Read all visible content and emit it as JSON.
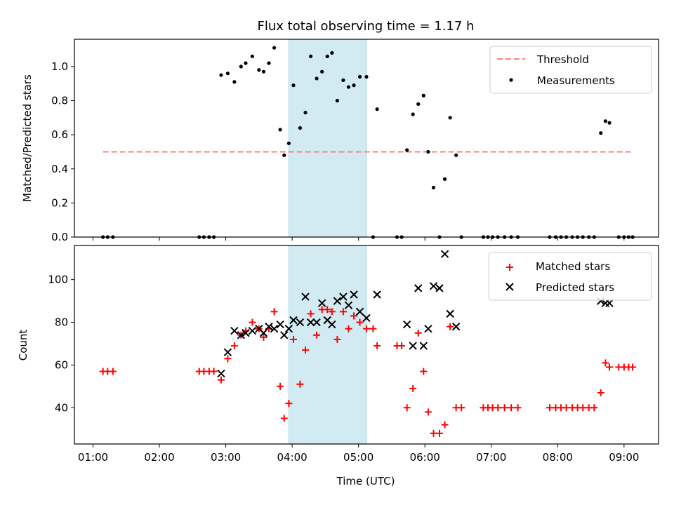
{
  "chart_data": [
    {
      "type": "scatter",
      "title": "Flux total observing time = 1.17 h",
      "xlabel": "",
      "ylabel": "Matched/Predicted stars",
      "x_tick_labels": [
        "01:00",
        "02:00",
        "03:00",
        "04:00",
        "05:00",
        "06:00",
        "07:00",
        "08:00",
        "09:00"
      ],
      "x_ticks_hours": [
        1,
        2,
        3,
        4,
        5,
        6,
        7,
        8,
        9
      ],
      "xlim_hours": [
        0.72,
        9.52
      ],
      "ylim": [
        0,
        1.16
      ],
      "y_ticks": [
        "0.0",
        "0.2",
        "0.4",
        "0.6",
        "0.8",
        "1.0"
      ],
      "y_tick_values": [
        0.0,
        0.2,
        0.4,
        0.6,
        0.8,
        1.0
      ],
      "legend_position": "top-right",
      "shaded_interval_hours": [
        3.95,
        5.12
      ],
      "shaded_color": "#add8e6",
      "series": [
        {
          "name": "Threshold",
          "style": "dashed-line",
          "color": "#ff8080",
          "x_hours": [
            1.15,
            9.13
          ],
          "y": [
            0.5,
            0.5
          ]
        },
        {
          "name": "Measurements",
          "style": "dot",
          "color": "#000000",
          "x_hours": [
            1.15,
            1.22,
            1.3,
            2.6,
            2.67,
            2.75,
            2.82,
            2.93,
            3.03,
            3.13,
            3.23,
            3.3,
            3.4,
            3.5,
            3.57,
            3.65,
            3.73,
            3.82,
            3.88,
            3.95,
            4.02,
            4.12,
            4.2,
            4.28,
            4.37,
            4.45,
            4.53,
            4.6,
            4.68,
            4.77,
            4.85,
            4.93,
            5.02,
            5.12,
            5.22,
            5.28,
            5.58,
            5.65,
            5.73,
            5.82,
            5.9,
            5.98,
            6.05,
            6.13,
            6.22,
            6.3,
            6.38,
            6.47,
            6.55,
            6.88,
            6.95,
            7.02,
            7.1,
            7.2,
            7.3,
            7.4,
            7.88,
            7.97,
            8.05,
            8.13,
            8.22,
            8.3,
            8.38,
            8.47,
            8.55,
            8.65,
            8.72,
            8.78,
            8.92,
            9.0,
            9.07,
            9.13
          ],
          "y": [
            0.0,
            0.0,
            0.0,
            0.0,
            0.0,
            0.0,
            0.0,
            0.95,
            0.96,
            0.91,
            1.0,
            1.02,
            1.06,
            0.98,
            0.97,
            1.02,
            1.11,
            0.63,
            0.48,
            0.55,
            0.89,
            0.64,
            0.73,
            1.06,
            0.93,
            0.97,
            1.06,
            1.08,
            0.8,
            0.92,
            0.88,
            0.89,
            0.94,
            0.94,
            0.0,
            0.75,
            0.0,
            0.0,
            0.51,
            0.72,
            0.78,
            0.83,
            0.5,
            0.29,
            0.0,
            0.34,
            0.7,
            0.48,
            0.0,
            0.0,
            0.0,
            0.0,
            0.0,
            0.0,
            0.0,
            0.0,
            0.0,
            0.0,
            0.0,
            0.0,
            0.0,
            0.0,
            0.0,
            0.0,
            0.0,
            0.61,
            0.68,
            0.67,
            0.0,
            0.0,
            0.0,
            0.0
          ]
        }
      ]
    },
    {
      "type": "scatter",
      "title": "",
      "xlabel": "Time (UTC)",
      "ylabel": "Count",
      "x_tick_labels": [
        "01:00",
        "02:00",
        "03:00",
        "04:00",
        "05:00",
        "06:00",
        "07:00",
        "08:00",
        "09:00"
      ],
      "x_ticks_hours": [
        1,
        2,
        3,
        4,
        5,
        6,
        7,
        8,
        9
      ],
      "xlim_hours": [
        0.72,
        9.52
      ],
      "ylim": [
        23,
        116
      ],
      "y_ticks": [
        "40",
        "60",
        "80",
        "100"
      ],
      "y_tick_values": [
        40,
        60,
        80,
        100
      ],
      "legend_position": "top-right",
      "shaded_interval_hours": [
        3.95,
        5.12
      ],
      "shaded_color": "#add8e6",
      "series": [
        {
          "name": "Matched stars",
          "style": "plus",
          "color": "#ff0000",
          "x_hours": [
            1.15,
            1.22,
            1.3,
            2.6,
            2.67,
            2.75,
            2.82,
            2.93,
            3.03,
            3.13,
            3.23,
            3.3,
            3.4,
            3.5,
            3.57,
            3.65,
            3.73,
            3.82,
            3.88,
            3.95,
            4.02,
            4.12,
            4.2,
            4.28,
            4.37,
            4.45,
            4.53,
            4.6,
            4.68,
            4.77,
            4.85,
            4.93,
            5.02,
            5.12,
            5.22,
            5.28,
            5.58,
            5.65,
            5.73,
            5.82,
            5.9,
            5.98,
            6.05,
            6.13,
            6.22,
            6.3,
            6.38,
            6.47,
            6.55,
            6.88,
            6.95,
            7.02,
            7.1,
            7.2,
            7.3,
            7.4,
            7.88,
            7.97,
            8.05,
            8.13,
            8.22,
            8.3,
            8.38,
            8.47,
            8.55,
            8.65,
            8.72,
            8.78,
            8.92,
            9.0,
            9.07,
            9.13
          ],
          "y": [
            57,
            57,
            57,
            57,
            57,
            57,
            57,
            53,
            63,
            69,
            74,
            76,
            80,
            77,
            73,
            77,
            85,
            50,
            35,
            42,
            72,
            51,
            67,
            84,
            74,
            86,
            86,
            85,
            72,
            85,
            77,
            83,
            80,
            77,
            77,
            69,
            69,
            69,
            40,
            49,
            75,
            57,
            38,
            28,
            28,
            32,
            78,
            40,
            40,
            40,
            40,
            40,
            40,
            40,
            40,
            40,
            40,
            40,
            40,
            40,
            40,
            40,
            40,
            40,
            40,
            47,
            61,
            59,
            59,
            59,
            59,
            59
          ]
        },
        {
          "name": "Predicted stars",
          "style": "x",
          "color": "#000000",
          "x_hours": [
            2.93,
            3.03,
            3.13,
            3.23,
            3.3,
            3.4,
            3.5,
            3.57,
            3.65,
            3.73,
            3.82,
            3.88,
            3.95,
            4.02,
            4.12,
            4.2,
            4.28,
            4.37,
            4.45,
            4.53,
            4.6,
            4.68,
            4.77,
            4.85,
            4.93,
            5.02,
            5.12,
            5.28,
            5.73,
            5.82,
            5.9,
            5.98,
            6.05,
            6.13,
            6.22,
            6.3,
            6.38,
            6.47,
            8.65,
            8.72,
            8.78
          ],
          "y": [
            56,
            66,
            76,
            74,
            75,
            76,
            77,
            75,
            78,
            77,
            79,
            74,
            77,
            81,
            80,
            92,
            80,
            80,
            89,
            81,
            79,
            90,
            92,
            88,
            93,
            85,
            82,
            93,
            79,
            69,
            96,
            69,
            77,
            97,
            96,
            112,
            84,
            78,
            90,
            89,
            89
          ]
        }
      ]
    }
  ]
}
